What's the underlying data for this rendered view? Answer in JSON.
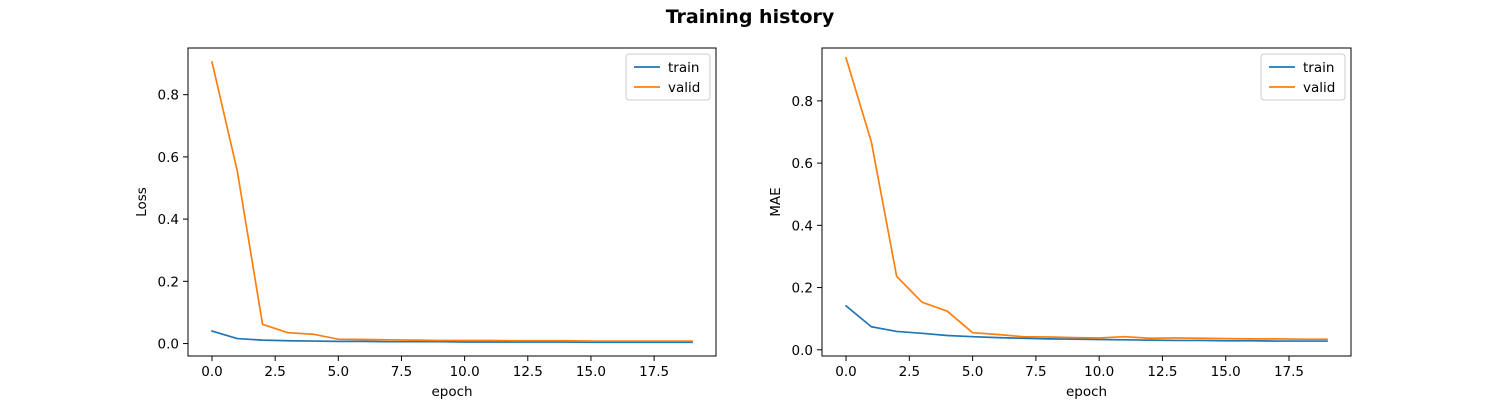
{
  "figure": {
    "title": "Training history"
  },
  "chart_data": [
    {
      "type": "line",
      "xlabel": "epoch",
      "ylabel": "Loss",
      "xlim": [
        -0.95,
        19.95
      ],
      "ylim": [
        -0.04,
        0.95
      ],
      "xticks": [
        0.0,
        2.5,
        5.0,
        7.5,
        10.0,
        12.5,
        15.0,
        17.5
      ],
      "xtick_labels": [
        "0.0",
        "2.5",
        "5.0",
        "7.5",
        "10.0",
        "12.5",
        "15.0",
        "17.5"
      ],
      "yticks": [
        0.0,
        0.2,
        0.4,
        0.6,
        0.8
      ],
      "ytick_labels": [
        "0.0",
        "0.2",
        "0.4",
        "0.6",
        "0.8"
      ],
      "grid": false,
      "legend_position": "top-right",
      "x": [
        0,
        1,
        2,
        3,
        4,
        5,
        6,
        7,
        8,
        9,
        10,
        11,
        12,
        13,
        14,
        15,
        16,
        17,
        18,
        19
      ],
      "series": [
        {
          "name": "train",
          "color": "#1f77b4",
          "values": [
            0.04,
            0.016,
            0.011,
            0.009,
            0.008,
            0.007,
            0.007,
            0.006,
            0.006,
            0.006,
            0.005,
            0.005,
            0.005,
            0.005,
            0.005,
            0.004,
            0.004,
            0.004,
            0.004,
            0.004
          ]
        },
        {
          "name": "valid",
          "color": "#ff7f0e",
          "values": [
            0.905,
            0.555,
            0.062,
            0.035,
            0.03,
            0.014,
            0.013,
            0.012,
            0.011,
            0.01,
            0.01,
            0.01,
            0.009,
            0.009,
            0.009,
            0.008,
            0.008,
            0.008,
            0.008,
            0.008
          ]
        }
      ]
    },
    {
      "type": "line",
      "xlabel": "epoch",
      "ylabel": "MAE",
      "xlim": [
        -0.95,
        19.95
      ],
      "ylim": [
        -0.02,
        0.97
      ],
      "xticks": [
        0.0,
        2.5,
        5.0,
        7.5,
        10.0,
        12.5,
        15.0,
        17.5
      ],
      "xtick_labels": [
        "0.0",
        "2.5",
        "5.0",
        "7.5",
        "10.0",
        "12.5",
        "15.0",
        "17.5"
      ],
      "yticks": [
        0.0,
        0.2,
        0.4,
        0.6,
        0.8
      ],
      "ytick_labels": [
        "0.0",
        "0.2",
        "0.4",
        "0.6",
        "0.8"
      ],
      "grid": false,
      "legend_position": "top-right",
      "x": [
        0,
        1,
        2,
        3,
        4,
        5,
        6,
        7,
        8,
        9,
        10,
        11,
        12,
        13,
        14,
        15,
        16,
        17,
        18,
        19
      ],
      "series": [
        {
          "name": "train",
          "color": "#1f77b4",
          "values": [
            0.141,
            0.074,
            0.059,
            0.053,
            0.046,
            0.042,
            0.039,
            0.037,
            0.035,
            0.034,
            0.033,
            0.032,
            0.031,
            0.03,
            0.03,
            0.029,
            0.029,
            0.028,
            0.028,
            0.028
          ]
        },
        {
          "name": "valid",
          "color": "#ff7f0e",
          "values": [
            0.938,
            0.668,
            0.236,
            0.153,
            0.124,
            0.055,
            0.049,
            0.042,
            0.041,
            0.039,
            0.038,
            0.042,
            0.037,
            0.038,
            0.037,
            0.036,
            0.035,
            0.035,
            0.034,
            0.034
          ]
        }
      ]
    }
  ]
}
